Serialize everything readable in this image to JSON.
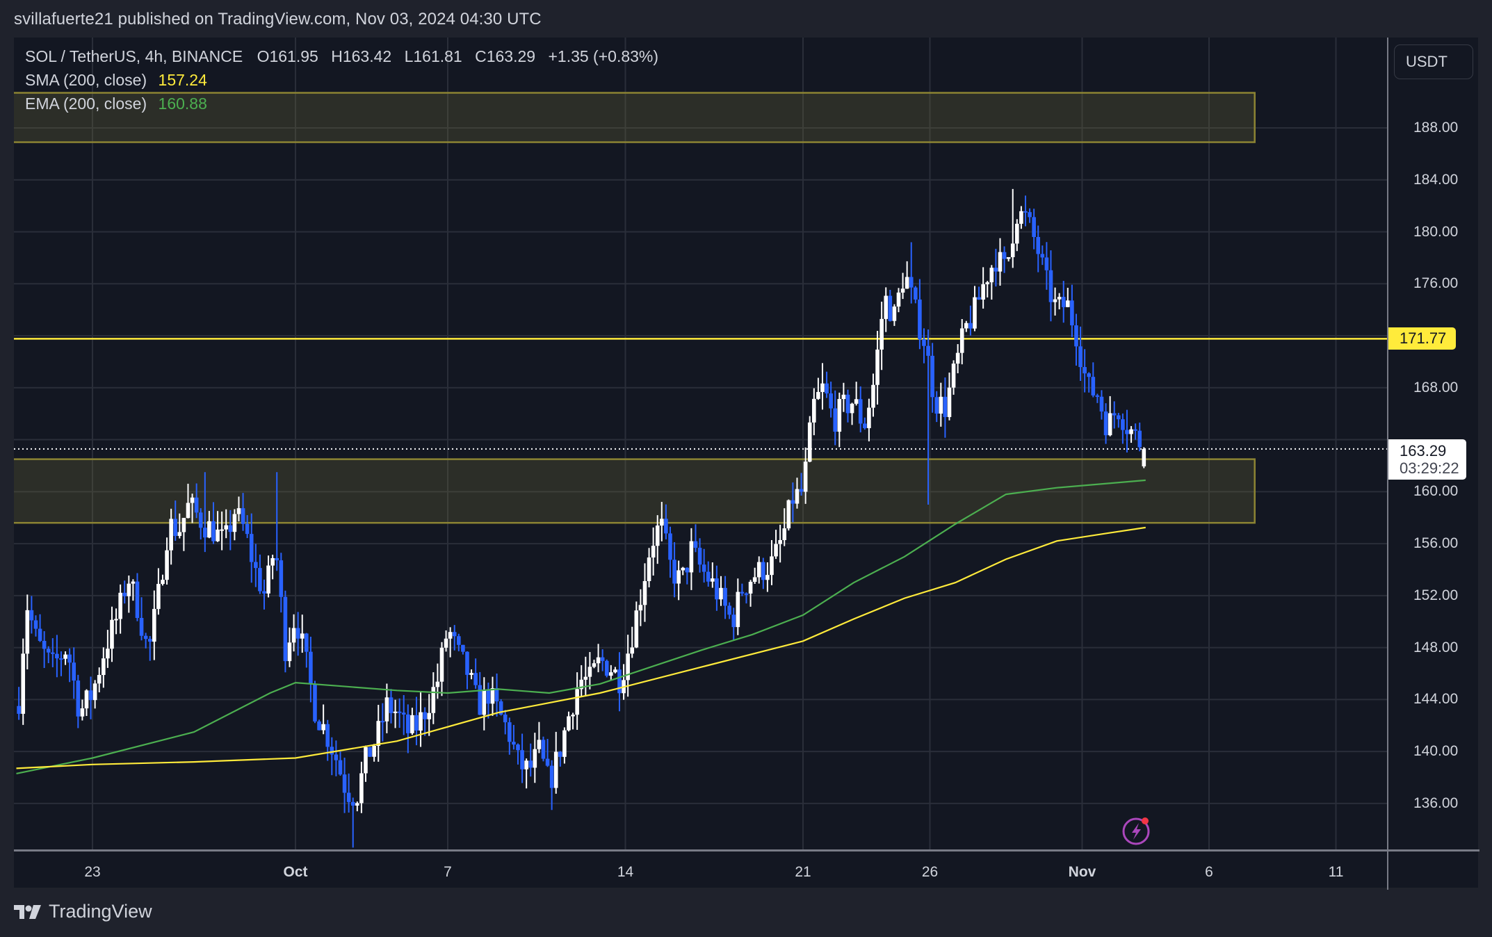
{
  "publisher_line": "svillafuerte21 published on TradingView.com, Nov 03, 2024 04:30 UTC",
  "legend": {
    "symbol": "SOL / TetherUS, 4h, BINANCE",
    "open": "O161.95",
    "high": "H163.42",
    "low": "L161.81",
    "close": "C163.29",
    "change": "+1.35 (+0.83%)",
    "sma_label": "SMA (200, close)",
    "sma_value": "157.24",
    "ema_label": "EMA (200, close)",
    "ema_value": "160.88"
  },
  "price_axis": {
    "currency": "USDT",
    "ticks": [
      "188.00",
      "184.00",
      "180.00",
      "176.00",
      "172.00",
      "168.00",
      "164.00",
      "160.00",
      "156.00",
      "152.00",
      "148.00",
      "144.00",
      "140.00",
      "136.00"
    ],
    "level_tag": "171.77",
    "last_price": "163.29",
    "countdown": "03:29:22"
  },
  "time_axis": {
    "ticks": [
      {
        "label": "23",
        "day": -8,
        "major": false
      },
      {
        "label": "Oct",
        "day": 0,
        "major": true
      },
      {
        "label": "7",
        "day": 6,
        "major": false
      },
      {
        "label": "14",
        "day": 13,
        "major": false
      },
      {
        "label": "21",
        "day": 20,
        "major": false
      },
      {
        "label": "26",
        "day": 25,
        "major": false
      },
      {
        "label": "Nov",
        "day": 31,
        "major": true
      },
      {
        "label": "6",
        "day": 36,
        "major": false
      },
      {
        "label": "11",
        "day": 41,
        "major": false
      }
    ]
  },
  "brand": "TradingView",
  "colors": {
    "background": "#131722",
    "grid": "#2a2e39",
    "up_candle": "#ffffff",
    "down_candle": "#2962ff",
    "sma": "#ffeb3b",
    "ema": "#4caf50",
    "zone_fill": "rgba(120,115,60,0.25)",
    "zone_border": "#8c8433",
    "level_line": "#ffeb3b",
    "alert_icon": "#ab47bc",
    "alert_dot": "#f23645"
  },
  "chart_data": {
    "type": "candlestick",
    "title": "SOL / TetherUS, 4h, BINANCE",
    "x_unit": "days from Oct 1, 2024",
    "xlim": [
      -11,
      44
    ],
    "ylim": [
      132.6,
      190.7
    ],
    "ylabel": "USDT",
    "grid": true,
    "last": {
      "open": 161.95,
      "high": 163.42,
      "low": 161.81,
      "close": 163.29,
      "change": 1.35,
      "change_pct": 0.83
    },
    "close_path": [
      [
        -10.9,
        144.0
      ],
      [
        -10.6,
        151.5
      ],
      [
        -10.2,
        148.5
      ],
      [
        -9.6,
        146.5
      ],
      [
        -9.0,
        148.0
      ],
      [
        -8.5,
        143.0
      ],
      [
        -8.0,
        144.5
      ],
      [
        -7.5,
        148.0
      ],
      [
        -7.0,
        150.5
      ],
      [
        -6.6,
        153.5
      ],
      [
        -6.2,
        151.0
      ],
      [
        -5.8,
        147.5
      ],
      [
        -5.4,
        152.0
      ],
      [
        -5.0,
        157.5
      ],
      [
        -4.6,
        157.0
      ],
      [
        -4.2,
        159.0
      ],
      [
        -3.6,
        157.5
      ],
      [
        -3.2,
        157.0
      ],
      [
        -2.8,
        156.0
      ],
      [
        -2.4,
        158.5
      ],
      [
        -2.0,
        157.0
      ],
      [
        -1.6,
        154.0
      ],
      [
        -1.2,
        152.0
      ],
      [
        -0.8,
        156.0
      ],
      [
        -0.4,
        148.0
      ],
      [
        0.0,
        150.5
      ],
      [
        0.4,
        147.0
      ],
      [
        0.8,
        143.0
      ],
      [
        1.2,
        141.5
      ],
      [
        1.6,
        139.5
      ],
      [
        2.0,
        137.0
      ],
      [
        2.4,
        136.5
      ],
      [
        2.8,
        139.5
      ],
      [
        3.2,
        141.0
      ],
      [
        3.6,
        143.5
      ],
      [
        4.0,
        143.0
      ],
      [
        4.4,
        141.5
      ],
      [
        4.8,
        142.0
      ],
      [
        5.2,
        143.5
      ],
      [
        5.6,
        145.5
      ],
      [
        6.0,
        149.5
      ],
      [
        6.4,
        147.5
      ],
      [
        6.8,
        146.0
      ],
      [
        7.2,
        143.5
      ],
      [
        7.6,
        144.5
      ],
      [
        8.0,
        143.0
      ],
      [
        8.4,
        141.5
      ],
      [
        8.8,
        139.0
      ],
      [
        9.2,
        138.5
      ],
      [
        9.6,
        140.0
      ],
      [
        10.0,
        137.5
      ],
      [
        10.4,
        140.0
      ],
      [
        10.8,
        143.0
      ],
      [
        11.2,
        145.5
      ],
      [
        11.6,
        145.5
      ],
      [
        12.0,
        147.0
      ],
      [
        12.4,
        146.5
      ],
      [
        12.8,
        145.5
      ],
      [
        13.2,
        148.5
      ],
      [
        13.6,
        152.0
      ],
      [
        14.0,
        156.0
      ],
      [
        14.4,
        157.5
      ],
      [
        14.8,
        154.0
      ],
      [
        15.2,
        153.0
      ],
      [
        15.6,
        155.5
      ],
      [
        16.0,
        154.0
      ],
      [
        16.4,
        153.0
      ],
      [
        16.8,
        151.5
      ],
      [
        17.2,
        150.0
      ],
      [
        17.6,
        152.5
      ],
      [
        18.0,
        153.5
      ],
      [
        18.4,
        154.0
      ],
      [
        18.8,
        154.5
      ],
      [
        19.2,
        156.5
      ],
      [
        19.6,
        159.5
      ],
      [
        20.0,
        160.0
      ],
      [
        20.4,
        166.5
      ],
      [
        20.8,
        168.0
      ],
      [
        21.2,
        165.5
      ],
      [
        21.6,
        166.5
      ],
      [
        22.0,
        167.0
      ],
      [
        22.4,
        165.0
      ],
      [
        22.8,
        168.5
      ],
      [
        23.2,
        175.0
      ],
      [
        23.6,
        173.5
      ],
      [
        24.0,
        177.0
      ],
      [
        24.4,
        174.0
      ],
      [
        24.8,
        171.5
      ],
      [
        25.2,
        167.0
      ],
      [
        25.6,
        166.5
      ],
      [
        26.0,
        169.5
      ],
      [
        26.4,
        172.5
      ],
      [
        26.8,
        174.0
      ],
      [
        27.2,
        176.5
      ],
      [
        27.6,
        178.0
      ],
      [
        28.0,
        177.0
      ],
      [
        28.4,
        181.5
      ],
      [
        28.8,
        181.0
      ],
      [
        29.2,
        179.0
      ],
      [
        29.6,
        176.0
      ],
      [
        30.0,
        174.0
      ],
      [
        30.4,
        174.5
      ],
      [
        30.8,
        172.0
      ],
      [
        31.2,
        168.0
      ],
      [
        31.6,
        167.5
      ],
      [
        32.0,
        165.0
      ],
      [
        32.4,
        166.5
      ],
      [
        32.8,
        165.0
      ],
      [
        33.2,
        164.0
      ],
      [
        33.5,
        163.29
      ]
    ],
    "swing_highs": [
      {
        "day": -3.5,
        "price": 161.5
      },
      {
        "day": -0.7,
        "price": 161.5
      },
      {
        "day": 24.2,
        "price": 179.2
      },
      {
        "day": 28.2,
        "price": 183.3
      }
    ],
    "swing_lows": [
      {
        "day": 2.2,
        "price": 132.6
      },
      {
        "day": 10.1,
        "price": 135.5
      },
      {
        "day": 25.0,
        "price": 159.0
      }
    ],
    "sma_200": [
      [
        -11,
        138.7
      ],
      [
        -8,
        139.0
      ],
      [
        -4,
        139.2
      ],
      [
        0,
        139.5
      ],
      [
        4,
        140.8
      ],
      [
        8,
        143.0
      ],
      [
        12,
        144.5
      ],
      [
        16,
        146.5
      ],
      [
        20,
        148.5
      ],
      [
        22,
        150.2
      ],
      [
        24,
        151.8
      ],
      [
        26,
        153.0
      ],
      [
        28,
        154.8
      ],
      [
        30,
        156.2
      ],
      [
        32,
        156.8
      ],
      [
        33.5,
        157.24
      ]
    ],
    "ema_200": [
      [
        -11,
        138.3
      ],
      [
        -8,
        139.5
      ],
      [
        -4,
        141.5
      ],
      [
        -1,
        144.5
      ],
      [
        0,
        145.3
      ],
      [
        2,
        145.0
      ],
      [
        4,
        144.7
      ],
      [
        6,
        144.5
      ],
      [
        8,
        144.8
      ],
      [
        10,
        144.5
      ],
      [
        12,
        145.2
      ],
      [
        14,
        146.5
      ],
      [
        16,
        147.8
      ],
      [
        18,
        149.0
      ],
      [
        20,
        150.5
      ],
      [
        22,
        153.0
      ],
      [
        24,
        155.0
      ],
      [
        26,
        157.5
      ],
      [
        28,
        159.8
      ],
      [
        30,
        160.3
      ],
      [
        33.5,
        160.88
      ]
    ],
    "zones": [
      {
        "name": "resistance-zone",
        "top": 190.7,
        "bottom": 186.9,
        "from_day": -11,
        "to_day": 37.8
      },
      {
        "name": "support-zone",
        "top": 162.5,
        "bottom": 157.6,
        "from_day": -11,
        "to_day": 37.8
      }
    ],
    "level_line": 171.77,
    "last_price_line": 163.29
  }
}
